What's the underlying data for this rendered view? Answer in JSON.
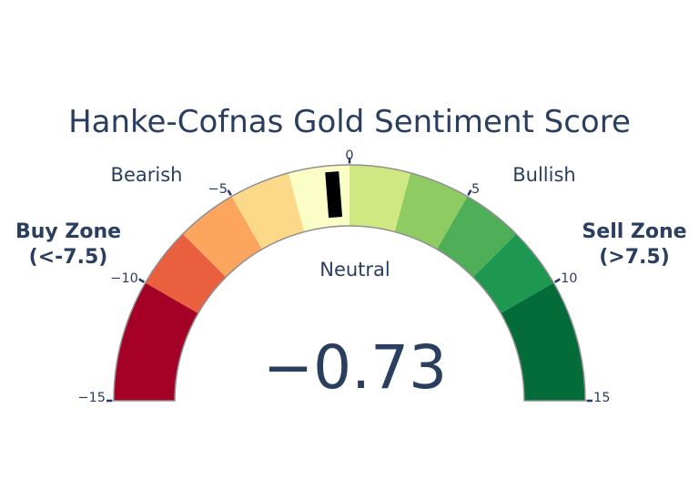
{
  "chart_data": {
    "type": "gauge",
    "title": "Hanke-Cofnas Gold Sentiment Score",
    "value": -0.73,
    "value_display": "−0.73",
    "axis": {
      "min": -15,
      "max": 15,
      "shape": "semicircle",
      "ticks": [
        -15,
        -10,
        -5,
        0,
        5,
        10,
        15
      ],
      "tick_labels": [
        "−15",
        "−10",
        "−5",
        "0",
        "5",
        "10",
        "15"
      ]
    },
    "steps": [
      {
        "from": -15,
        "to": -10,
        "color": "#a50026"
      },
      {
        "from": -10,
        "to": -7.5,
        "color": "#ea5f3d"
      },
      {
        "from": -7.5,
        "to": -5,
        "color": "#fba55e"
      },
      {
        "from": -5,
        "to": -2.5,
        "color": "#fcd988"
      },
      {
        "from": -2.5,
        "to": 0,
        "color": "#fbfdc6"
      },
      {
        "from": 0,
        "to": 2.5,
        "color": "#cfe881"
      },
      {
        "from": 2.5,
        "to": 5,
        "color": "#8ecc63"
      },
      {
        "from": 5,
        "to": 7.5,
        "color": "#4fae58"
      },
      {
        "from": 7.5,
        "to": 10,
        "color": "#1e9750"
      },
      {
        "from": 10,
        "to": 15,
        "color": "#046c38"
      }
    ],
    "needle_color": "#000000",
    "outline_color": "#909090",
    "tick_color": "#28366f",
    "text_color": "#2a3f5f",
    "annotations": {
      "bearish": "Bearish",
      "bullish": "Bullish",
      "neutral": "Neutral",
      "buy_zone_line1": "Buy Zone",
      "buy_zone_line2": "(<-7.5)",
      "sell_zone_line1": "Sell Zone",
      "sell_zone_line2": "(>7.5)"
    }
  }
}
